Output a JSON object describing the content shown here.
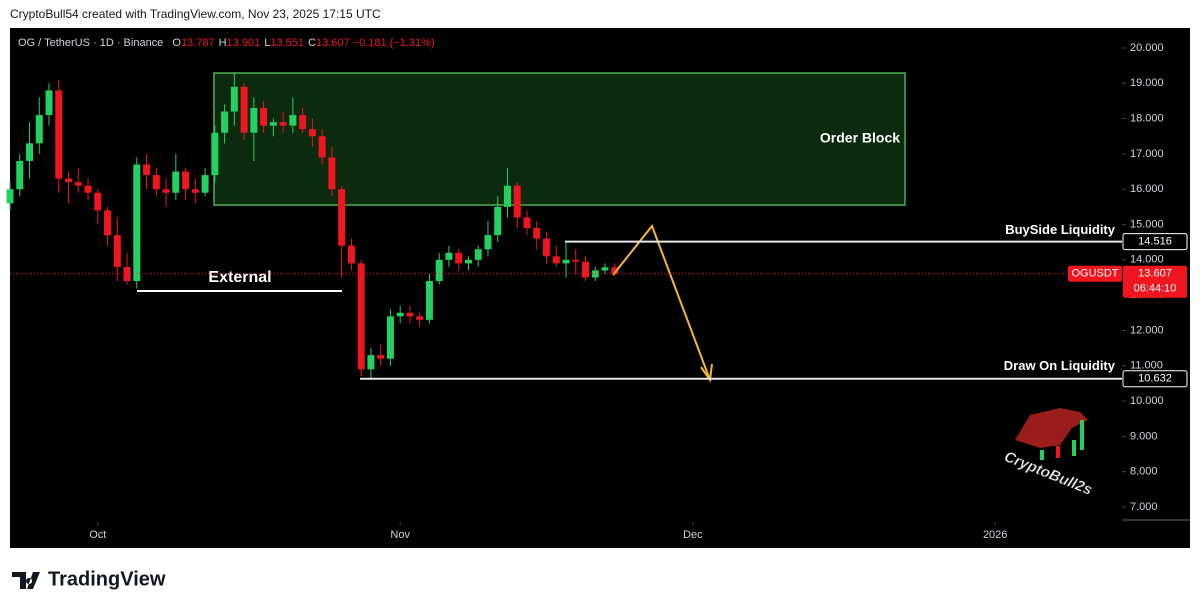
{
  "header": {
    "text": "CryptoBull54 created with TradingView.com, Nov 23, 2025 17:15 UTC"
  },
  "chart_data": {
    "type": "candlestick",
    "symbol": "OG / TetherUS · 1D · Binance",
    "legend": {
      "labels": [
        "O",
        "H",
        "L",
        "C"
      ],
      "values": [
        13.787,
        13.901,
        13.551,
        13.607
      ],
      "change": "−0.181 (−1.31%)"
    },
    "open": [
      15.6,
      16.0,
      16.8,
      17.3,
      18.1,
      18.8,
      16.3,
      16.2,
      16.1,
      15.9,
      15.4,
      14.7,
      13.8,
      13.4,
      16.7,
      16.4,
      16.0,
      15.9,
      16.5,
      16.0,
      15.9,
      16.4,
      17.6,
      18.2,
      18.9,
      17.6,
      18.3,
      17.8,
      17.9,
      17.8,
      18.1,
      17.7,
      17.5,
      16.9,
      16.0,
      14.4,
      13.9,
      10.9,
      11.3,
      11.2,
      12.4,
      12.5,
      12.4,
      12.3,
      13.4,
      14.0,
      14.2,
      13.9,
      14.0,
      14.3,
      14.7,
      15.5,
      16.1,
      15.2,
      14.9,
      14.6,
      14.1,
      13.9,
      14.0,
      13.95,
      13.5,
      13.7,
      13.787
    ],
    "high": [
      16.2,
      17.0,
      17.9,
      18.6,
      19.0,
      19.1,
      16.5,
      16.6,
      16.3,
      16.0,
      15.5,
      15.2,
      14.2,
      16.9,
      17.0,
      16.6,
      16.3,
      17.0,
      16.6,
      16.3,
      16.6,
      17.8,
      18.4,
      19.3,
      19.0,
      18.6,
      18.5,
      18.0,
      18.2,
      18.6,
      18.3,
      18.0,
      17.7,
      17.2,
      16.1,
      14.6,
      14.0,
      11.5,
      11.6,
      12.6,
      12.7,
      12.7,
      12.5,
      13.6,
      14.2,
      14.4,
      14.3,
      14.1,
      14.4,
      15.1,
      15.8,
      16.6,
      16.2,
      15.4,
      15.1,
      14.8,
      14.4,
      14.5,
      14.3,
      14.1,
      13.8,
      13.9,
      13.901
    ],
    "low": [
      15.4,
      15.8,
      16.3,
      17.0,
      17.8,
      15.9,
      15.6,
      15.9,
      15.7,
      15.0,
      14.4,
      13.4,
      13.3,
      13.2,
      16.0,
      15.8,
      15.5,
      15.7,
      15.7,
      15.6,
      15.8,
      16.2,
      17.3,
      17.8,
      17.4,
      16.8,
      17.6,
      17.5,
      17.6,
      17.6,
      17.6,
      17.2,
      16.7,
      15.8,
      13.5,
      13.7,
      10.7,
      10.6,
      11.0,
      11.0,
      12.2,
      12.2,
      12.1,
      12.2,
      13.3,
      13.8,
      13.7,
      13.7,
      13.8,
      14.1,
      14.5,
      15.2,
      14.9,
      14.7,
      14.3,
      13.9,
      13.8,
      13.5,
      13.6,
      13.4,
      13.4,
      13.6,
      13.551
    ],
    "close": [
      16.0,
      16.8,
      17.3,
      18.1,
      18.8,
      16.3,
      16.2,
      16.1,
      15.9,
      15.4,
      14.7,
      13.8,
      13.4,
      16.7,
      16.4,
      16.0,
      15.9,
      16.5,
      16.0,
      15.9,
      16.4,
      17.6,
      18.2,
      18.9,
      17.6,
      18.3,
      17.8,
      17.9,
      17.8,
      18.1,
      17.7,
      17.5,
      16.9,
      16.0,
      14.4,
      13.9,
      10.9,
      11.3,
      11.2,
      12.4,
      12.5,
      12.4,
      12.3,
      13.4,
      14.0,
      14.2,
      13.9,
      14.0,
      14.3,
      14.7,
      15.5,
      16.1,
      15.2,
      14.9,
      14.6,
      14.1,
      13.9,
      14.0,
      13.95,
      13.5,
      13.7,
      13.787,
      13.607
    ],
    "up_color": "#22d160",
    "down_color": "#f0151f",
    "xlim": [
      0,
      114
    ],
    "xticks": [
      {
        "value": 9,
        "label": "Oct"
      },
      {
        "value": 40,
        "label": "Nov"
      },
      {
        "value": 70,
        "label": "Dec"
      },
      {
        "value": 101,
        "label": "2026"
      }
    ],
    "ylim": [
      6.575,
      20.566
    ],
    "yticks": [
      {
        "value": 7,
        "label": "7.000"
      },
      {
        "value": 8,
        "label": "8.000"
      },
      {
        "value": 9,
        "label": "9.000"
      },
      {
        "value": 10,
        "label": "10.000"
      },
      {
        "value": 11,
        "label": "11.000"
      },
      {
        "value": 12,
        "label": "12.000"
      },
      {
        "value": 13,
        "label": "13.000"
      },
      {
        "value": 14,
        "label": "14.000"
      },
      {
        "value": 15,
        "label": "15.000"
      },
      {
        "value": 16,
        "label": "16.000"
      },
      {
        "value": 17,
        "label": "17.000"
      },
      {
        "value": 18,
        "label": "18.000"
      },
      {
        "value": 19,
        "label": "19.000"
      },
      {
        "value": 20,
        "label": "20.000"
      }
    ],
    "annotations": {
      "order_block": "Order Block",
      "external": "External"
    },
    "levels": [
      {
        "label": "BuySide Liquidity",
        "value": 14.516
      },
      {
        "label": "Draw On Liquidity",
        "value": 10.632
      }
    ],
    "last_price": {
      "symbol": "OGUSDT",
      "value": 13.607,
      "countdown": "06:44:10"
    },
    "watermark": "CryptoBull2s"
  },
  "footer": {
    "brand": "TradingView"
  }
}
